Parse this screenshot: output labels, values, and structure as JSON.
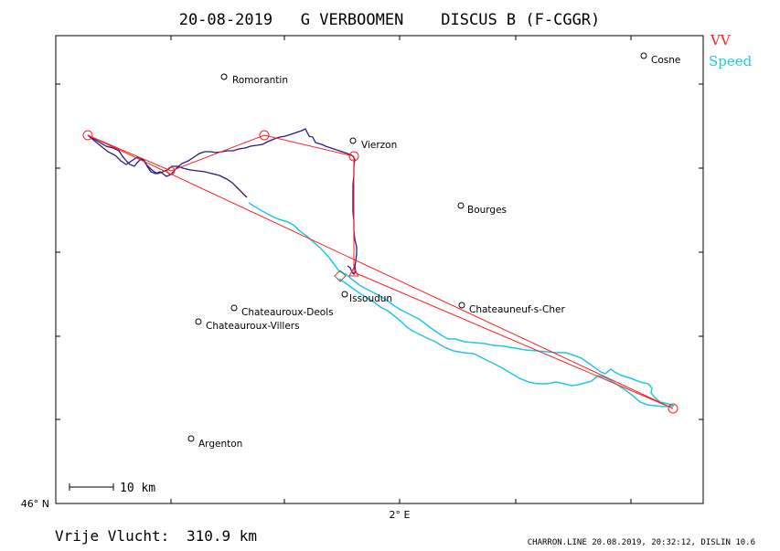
{
  "header": {
    "title": "20-08-2019   G VERBOOMEN    DISCUS B (F-CGGR)"
  },
  "legend": [
    {
      "label": "VV",
      "color": "#ff2020"
    },
    {
      "label": "Speed",
      "color": "#1ec8e8"
    }
  ],
  "towns": [
    {
      "name": "Romorantin"
    },
    {
      "name": "Vierzon"
    },
    {
      "name": "Cosne"
    },
    {
      "name": "Bourges"
    },
    {
      "name": "Issoudun"
    },
    {
      "name": "Chateauroux-Deols"
    },
    {
      "name": "Chateauroux-Villers"
    },
    {
      "name": "Chateauneuf-s-Cher"
    },
    {
      "name": "Argenton"
    }
  ],
  "axes": {
    "x_tick_label": "2° E",
    "y_tick_label": "46° N"
  },
  "scale_bar": {
    "label": "10 km"
  },
  "distance": {
    "label": "Vrije Vlucht:",
    "value": "310.9 km"
  },
  "footer": {
    "credit": "CHARRON.LINE 20.08.2019, 20:32:12, DISLIN 10.6"
  },
  "colors": {
    "task_line": "#ff2020",
    "track_vv": "#2a1a8c",
    "track_speed": "#1ec8e8",
    "frame": "#000000"
  }
}
